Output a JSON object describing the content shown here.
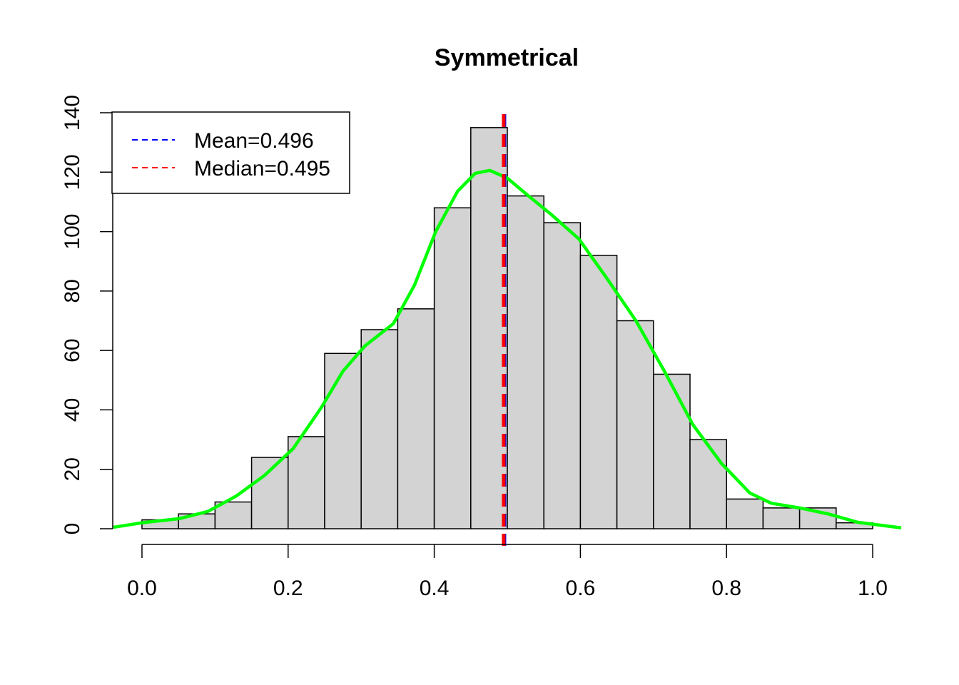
{
  "chart_data": {
    "type": "bar",
    "title": "Symmetrical",
    "xlabel": "",
    "ylabel": "",
    "xlim": [
      -0.04,
      1.04
    ],
    "ylim": [
      0,
      140
    ],
    "bin_width": 0.05,
    "bin_starts": [
      0,
      0.05,
      0.1,
      0.15,
      0.2,
      0.25,
      0.3,
      0.35,
      0.4,
      0.45,
      0.5,
      0.55,
      0.6,
      0.65,
      0.7,
      0.75,
      0.8,
      0.85,
      0.9,
      0.95
    ],
    "values": [
      3,
      5,
      9,
      24,
      31,
      59,
      67,
      74,
      108,
      135,
      112,
      103,
      92,
      70,
      52,
      30,
      10,
      7,
      7,
      2
    ],
    "x_ticks": [
      0.0,
      0.2,
      0.4,
      0.6,
      0.8,
      1.0
    ],
    "x_tick_labels": [
      "0.0",
      "0.2",
      "0.4",
      "0.6",
      "0.8",
      "1.0"
    ],
    "y_ticks": [
      0,
      20,
      40,
      60,
      80,
      100,
      120,
      140
    ],
    "y_tick_labels": [
      "0",
      "20",
      "40",
      "60",
      "80",
      "100",
      "120",
      "140"
    ],
    "density_curve": {
      "color": "#00ff00",
      "x": [
        -0.039,
        0,
        0.051,
        0.09,
        0.129,
        0.168,
        0.207,
        0.246,
        0.275,
        0.305,
        0.344,
        0.373,
        0.402,
        0.432,
        0.456,
        0.476,
        0.5,
        0.529,
        0.559,
        0.598,
        0.637,
        0.676,
        0.715,
        0.754,
        0.793,
        0.832,
        0.861,
        0.9,
        0.939,
        0.979,
        1.039
      ],
      "y": [
        0.5,
        2,
        3.4,
        5.8,
        11,
        18,
        27,
        41,
        53,
        61.5,
        69,
        82,
        100,
        113.6,
        119.6,
        120.6,
        118,
        112,
        106,
        97.5,
        84,
        70,
        53,
        35,
        22,
        12,
        8.6,
        7,
        5,
        2.2,
        0.3
      ]
    },
    "mean": 0.496,
    "median": 0.495,
    "bar_fill": "#d3d3d3",
    "mean_color": "#0000ff",
    "median_color": "#ff0000",
    "legend": {
      "placement": "top-left",
      "entries": [
        {
          "label": "Mean=0.496",
          "color": "#0000ff"
        },
        {
          "label": "Median=0.495",
          "color": "#ff0000"
        }
      ]
    }
  }
}
